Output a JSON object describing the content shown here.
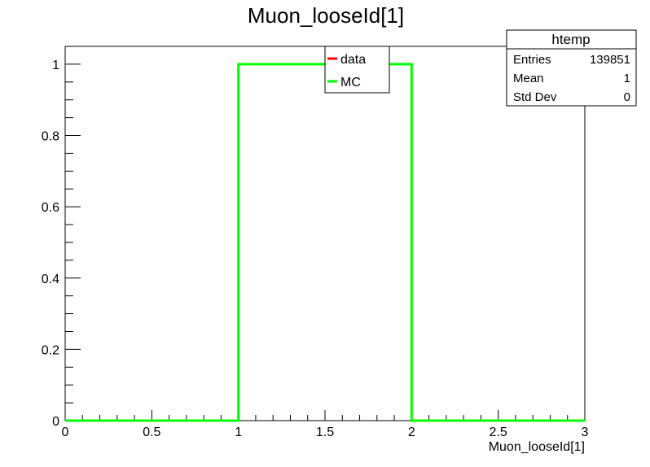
{
  "chart_data": {
    "type": "line",
    "title": "Muon_looseId[1]",
    "xlabel": "Muon_looseId[1]",
    "ylabel": "",
    "xlim": [
      0,
      3
    ],
    "ylim": [
      0,
      1.05
    ],
    "x_ticks": [
      "0",
      "0.5",
      "1",
      "1.5",
      "2",
      "2.5",
      "3"
    ],
    "y_ticks": [
      "0",
      "0.2",
      "0.4",
      "0.6",
      "0.8",
      "1"
    ],
    "grid": false,
    "legend_position": "top-center",
    "series": [
      {
        "name": "data",
        "color": "#ff0000",
        "x": [],
        "y": []
      },
      {
        "name": "MC",
        "color": "#00ff00",
        "x": [
          0,
          1,
          1,
          2,
          2,
          3
        ],
        "y": [
          0,
          0,
          1,
          1,
          0,
          0
        ]
      }
    ],
    "stats_box": {
      "title": "htemp",
      "rows": [
        {
          "label": "Entries",
          "value": "139851"
        },
        {
          "label": "Mean",
          "value": "1"
        },
        {
          "label": "Std Dev",
          "value": "0"
        }
      ]
    }
  }
}
